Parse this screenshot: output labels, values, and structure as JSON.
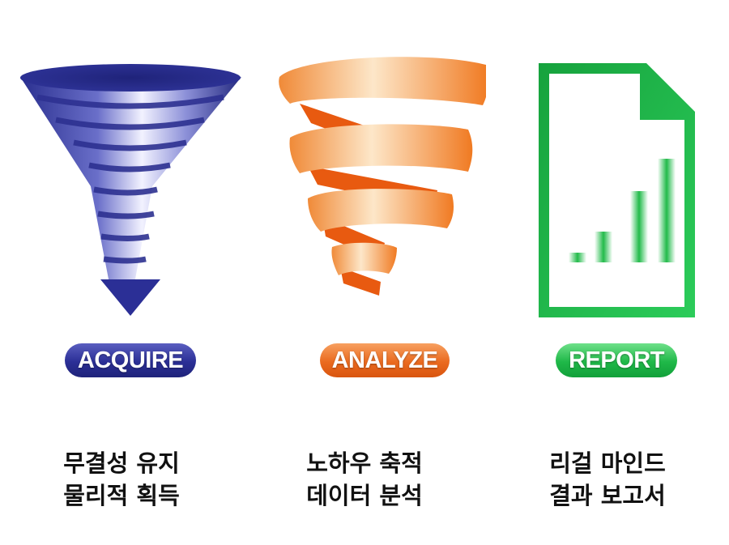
{
  "steps": [
    {
      "label": "ACQUIRE",
      "icon": "funnel-icon",
      "color": "#2b2f96",
      "caption_lines": [
        "무결성 유지",
        "물리적 획득"
      ]
    },
    {
      "label": "ANALYZE",
      "icon": "spiral-ribbon-icon",
      "color": "#ea6a1f",
      "caption_lines": [
        "노하우 축적",
        "데이터 분석"
      ]
    },
    {
      "label": "REPORT",
      "icon": "report-chart-document-icon",
      "color": "#1fb848",
      "caption_lines": [
        "리걸 마인드",
        "결과 보고서"
      ]
    }
  ]
}
